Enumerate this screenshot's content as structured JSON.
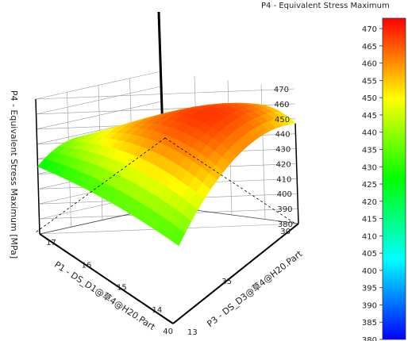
{
  "chart_data": {
    "type": "surface",
    "title": "P4 - Equivalent Stress Maximum",
    "xlabel": "P1 - DS_D1@草4@H20.Part",
    "ylabel": "P3 - DS_D3@草4@H20.Part",
    "zlabel": "P4 - Equivalent Stress Maximum  [MPa]",
    "x_range": [
      30,
      40
    ],
    "y_range": [
      13,
      17
    ],
    "z_range": [
      380,
      470
    ],
    "x_ticks": [
      "30",
      "35",
      "40"
    ],
    "y_ticks": [
      "13",
      "14",
      "15",
      "16",
      "17"
    ],
    "z_ticks": [
      "380",
      "390",
      "400",
      "410",
      "420",
      "430",
      "440",
      "450",
      "460",
      "470"
    ],
    "surface_points": [
      {
        "x": 30,
        "y": 13,
        "z": 447
      },
      {
        "x": 30,
        "y": 15,
        "z": 449
      },
      {
        "x": 30,
        "y": 17,
        "z": 383
      },
      {
        "x": 35,
        "y": 13,
        "z": 458
      },
      {
        "x": 35,
        "y": 15,
        "z": 465
      },
      {
        "x": 35,
        "y": 17,
        "z": 435
      },
      {
        "x": 40,
        "y": 13,
        "z": 432
      },
      {
        "x": 40,
        "y": 15,
        "z": 432
      },
      {
        "x": 40,
        "y": 17,
        "z": 425
      }
    ],
    "colorbar": {
      "min": 380,
      "max": 473,
      "ticks": [
        "470",
        "465",
        "460",
        "455",
        "450",
        "445",
        "440",
        "435",
        "430",
        "425",
        "420",
        "415",
        "410",
        "405",
        "400",
        "395",
        "390",
        "385",
        "380"
      ]
    }
  }
}
